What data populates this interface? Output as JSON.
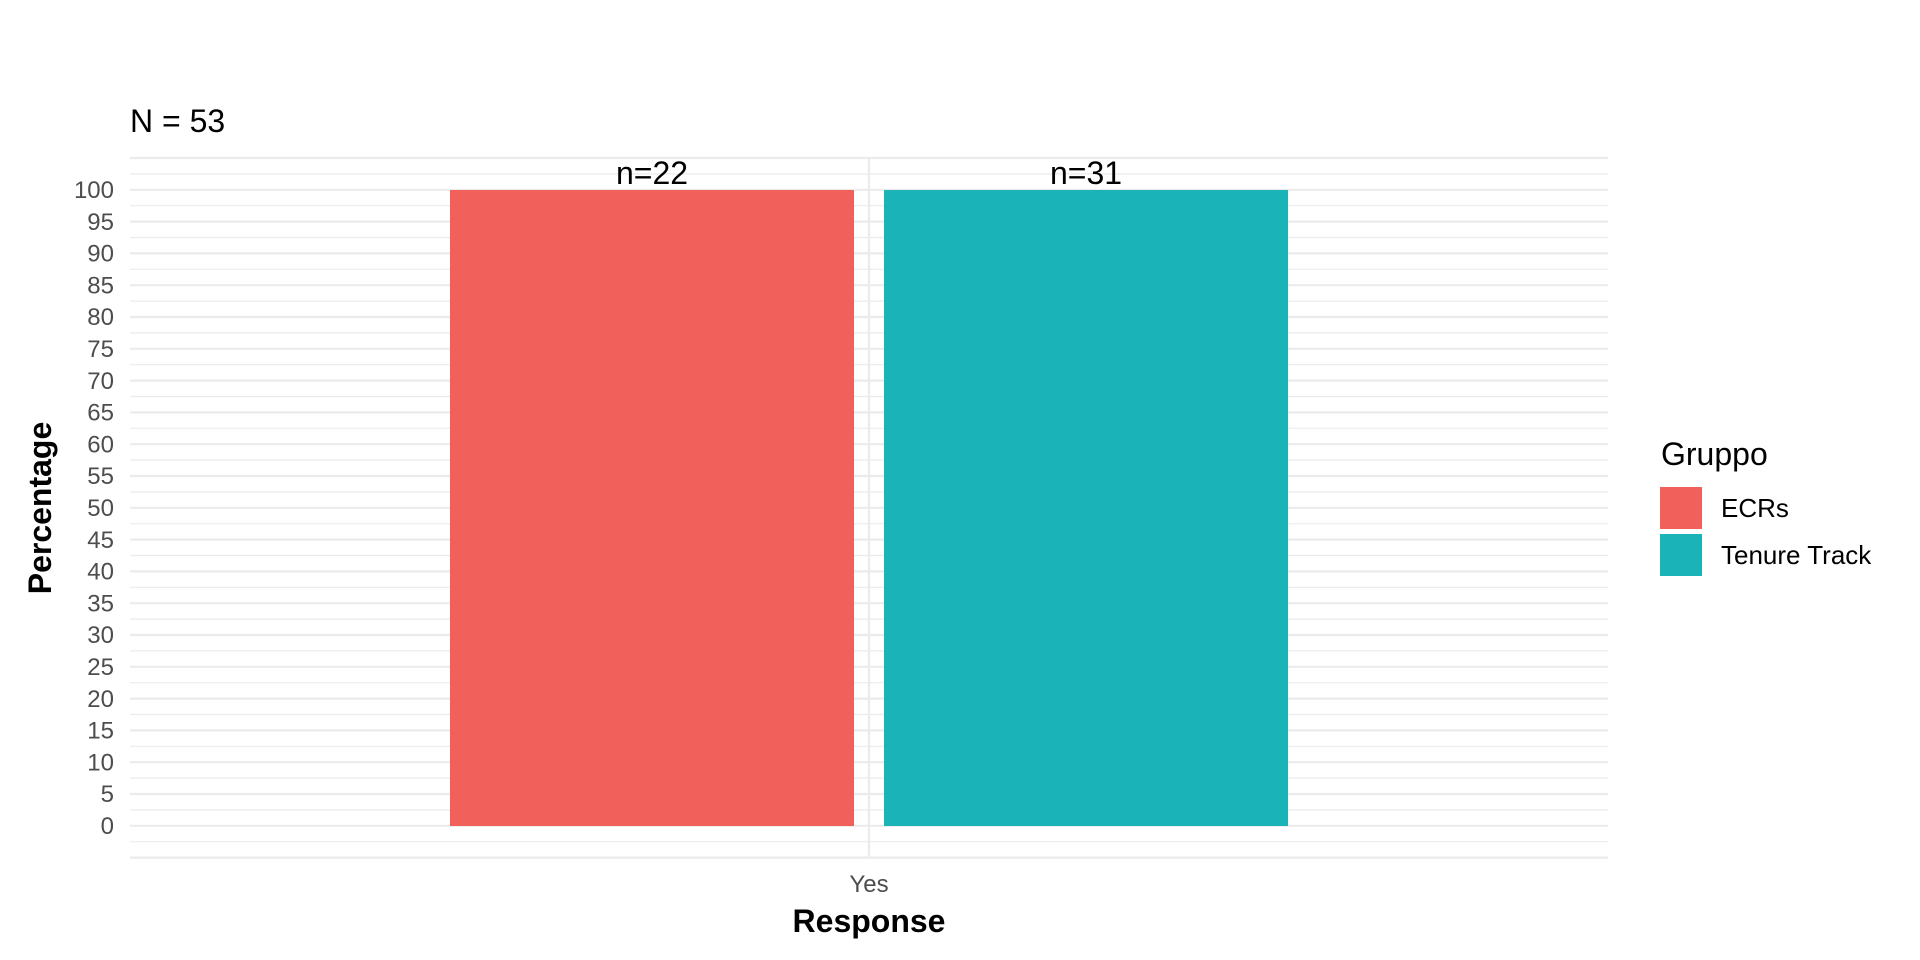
{
  "chart_data": {
    "type": "bar",
    "title": "",
    "subtitle": "N = 53",
    "xlabel": "Response",
    "ylabel": "Percentage",
    "categories": [
      "Yes"
    ],
    "series": [
      {
        "name": "ECRs",
        "values": [
          100
        ],
        "label": "n=22",
        "color": "#F2605C"
      },
      {
        "name": "Tenure Track",
        "values": [
          100
        ],
        "label": "n=31",
        "color": "#1AB3B8"
      }
    ],
    "ylim": [
      0,
      100
    ],
    "yticks": [
      0,
      5,
      10,
      15,
      20,
      25,
      30,
      35,
      40,
      45,
      50,
      55,
      60,
      65,
      70,
      75,
      80,
      85,
      90,
      95,
      100
    ],
    "grid": true,
    "legend": {
      "title": "Gruppo",
      "position": "right"
    }
  }
}
